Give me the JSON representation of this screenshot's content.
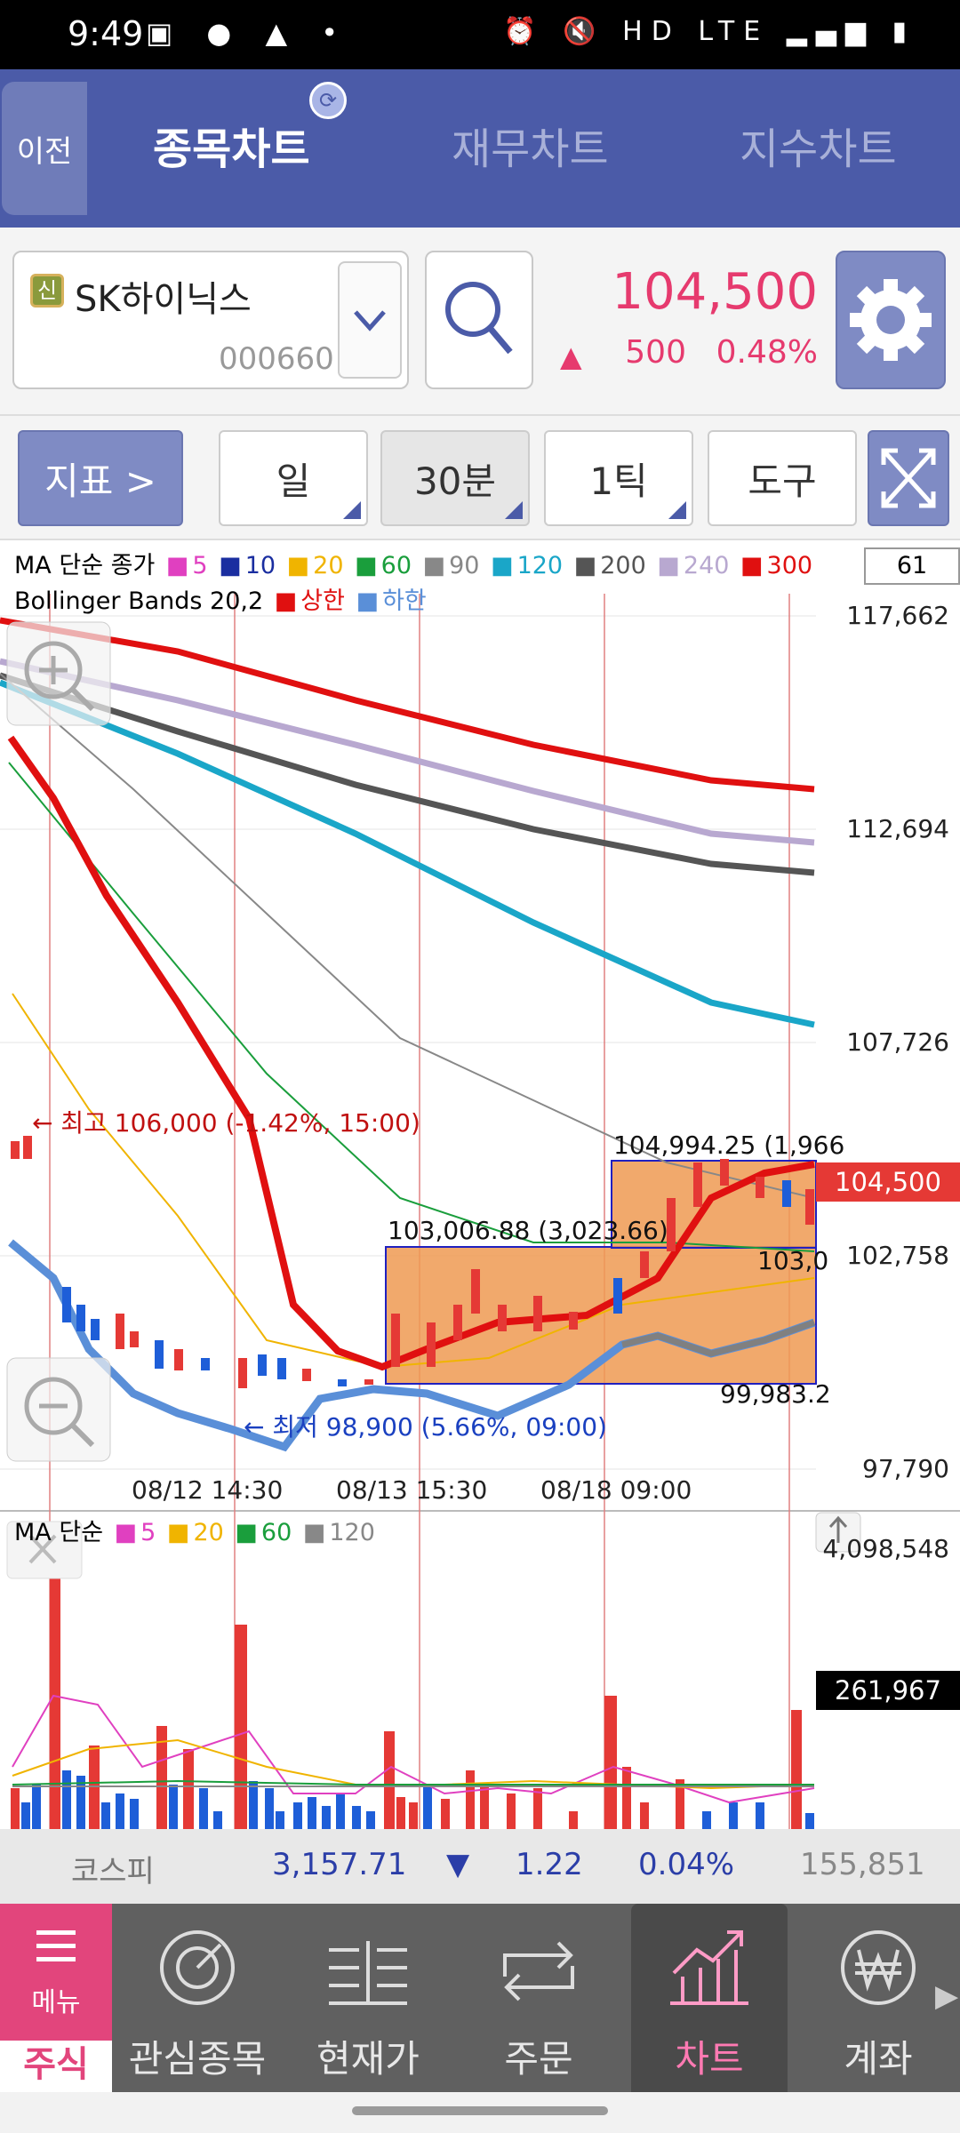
{
  "status_bar": {
    "time": "9:49",
    "left_icons": "▣ ● ▲ •",
    "right_icons": "⏰ 🔇 HD LTE ▂▄▆ ▮"
  },
  "top_nav": {
    "back_label": "이전",
    "tabs": [
      {
        "label": "종목차트",
        "active": true
      },
      {
        "label": "재무차트",
        "active": false
      },
      {
        "label": "지수차트",
        "active": false
      }
    ]
  },
  "stock": {
    "badge": "신",
    "name": "SK하이닉스",
    "code": "000660",
    "price": "104,500",
    "change_arrow": "▲",
    "change": "500",
    "change_rate": "0.48%"
  },
  "toolbar": {
    "indicator_label": "지표 >",
    "period_day": "일",
    "period_30min": "30분",
    "period_tick": "1틱",
    "tools_label": "도구"
  },
  "chart": {
    "ma_legend": {
      "label": "MA 단순 종가",
      "periods": [
        {
          "p": "5",
          "color": "#e040c0"
        },
        {
          "p": "10",
          "color": "#1a2ea0"
        },
        {
          "p": "20",
          "color": "#f0b400"
        },
        {
          "p": "60",
          "color": "#1a9e3c"
        },
        {
          "p": "90",
          "color": "#888888"
        },
        {
          "p": "120",
          "color": "#1aa6c8"
        },
        {
          "p": "200",
          "color": "#555555"
        },
        {
          "p": "240",
          "color": "#b8a8d0"
        },
        {
          "p": "300",
          "color": "#e01010"
        }
      ]
    },
    "bb_legend": {
      "label": "Bollinger Bands 20,2",
      "upper": "상한",
      "lower": "하한",
      "upper_color": "#e01010",
      "lower_color": "#5a8fd8"
    },
    "period_count": "61",
    "y_axis": [
      "117,662",
      "112,694",
      "107,726",
      "102,758",
      "97,790"
    ],
    "x_axis": [
      "08/12 14:30",
      "08/13 15:30",
      "08/18 09:00"
    ],
    "current_price_tag": "104,500",
    "annotations": {
      "high": "← 최고 106,000 (-1.42%, 15:00)",
      "low": "← 최저 98,900 (5.66%, 09:00)",
      "box1_top": "103,006.88 (3,023.66)",
      "box2_top": "104,994.25 (1,966",
      "box2_bottom": "103,0",
      "box1_bottom": "99,983.2"
    },
    "volume_legend": {
      "label": "MA 단순",
      "periods": [
        {
          "p": "5",
          "color": "#e040c0"
        },
        {
          "p": "20",
          "color": "#f0b400"
        },
        {
          "p": "60",
          "color": "#1a9e3c"
        },
        {
          "p": "120",
          "color": "#888888"
        }
      ]
    },
    "volume_max": "4,098,548",
    "volume_current": "261,967"
  },
  "index_bar": {
    "name": "코스피",
    "value": "3,157.71",
    "arrow": "▼",
    "change": "1.22",
    "rate": "0.04%",
    "volume": "155,851"
  },
  "bottom_nav": {
    "menu_label": "메뉴",
    "stock_label": "주식",
    "items": [
      {
        "label": "관심종목",
        "icon": "watchlist-icon"
      },
      {
        "label": "현재가",
        "icon": "current-price-icon"
      },
      {
        "label": "주문",
        "icon": "order-icon"
      },
      {
        "label": "차트",
        "icon": "chart-icon",
        "active": true
      },
      {
        "label": "계좌",
        "icon": "account-won-icon"
      }
    ],
    "more": "▶"
  }
}
